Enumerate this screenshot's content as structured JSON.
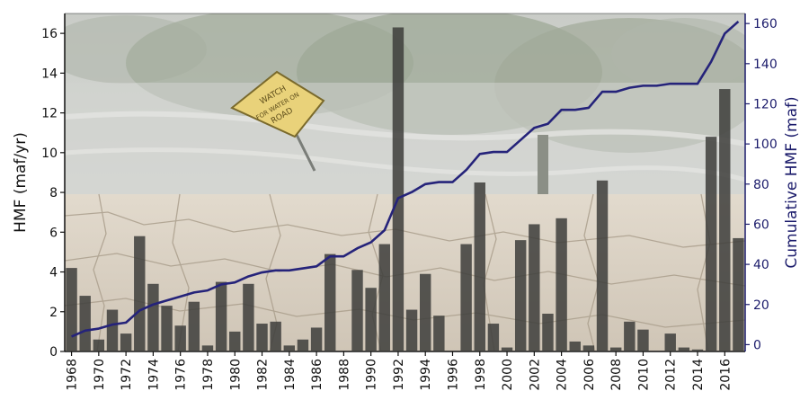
{
  "chart_data": {
    "type": "bar",
    "x": [
      1968,
      1969,
      1970,
      1971,
      1972,
      1973,
      1974,
      1975,
      1976,
      1977,
      1978,
      1979,
      1980,
      1981,
      1982,
      1983,
      1984,
      1985,
      1986,
      1987,
      1988,
      1989,
      1990,
      1991,
      1992,
      1993,
      1994,
      1995,
      1996,
      1997,
      1998,
      1999,
      2000,
      2001,
      2002,
      2003,
      2004,
      2005,
      2006,
      2007,
      2008,
      2009,
      2010,
      2011,
      2012,
      2013,
      2014,
      2015,
      2016,
      2017
    ],
    "series": [
      {
        "axis": "left",
        "kind": "bar",
        "values": [
          4.2,
          2.8,
          0.6,
          2.1,
          0.9,
          5.8,
          3.4,
          2.3,
          1.3,
          2.5,
          0.3,
          3.5,
          1.0,
          3.4,
          1.4,
          1.5,
          0.3,
          0.6,
          1.2,
          4.9,
          0,
          4.1,
          3.2,
          5.4,
          16.3,
          2.1,
          3.9,
          1.8,
          0,
          5.4,
          8.5,
          1.4,
          0.2,
          5.6,
          6.4,
          1.9,
          6.7,
          0.5,
          0.3,
          8.6,
          0.2,
          1.5,
          1.1,
          0,
          0.9,
          0.2,
          0.1,
          10.8,
          13.2,
          5.7
        ]
      },
      {
        "axis": "right",
        "kind": "line",
        "values": [
          4,
          7,
          8,
          10,
          11,
          17,
          20,
          22,
          24,
          26,
          27,
          30,
          31,
          34,
          36,
          37,
          37,
          38,
          39,
          44,
          44,
          48,
          51,
          57,
          73,
          76,
          80,
          81,
          81,
          87,
          95,
          96,
          96,
          102,
          108,
          110,
          117,
          117,
          118,
          126,
          126,
          128,
          129,
          129,
          130,
          130,
          130,
          141,
          155,
          161
        ]
      }
    ],
    "xticks": [
      "1968",
      "1970",
      "1972",
      "1974",
      "1976",
      "1978",
      "1980",
      "1982",
      "1984",
      "1986",
      "1988",
      "1990",
      "1992",
      "1994",
      "1996",
      "1998",
      "2000",
      "2002",
      "2004",
      "2006",
      "2008",
      "2010",
      "2012",
      "2014",
      "2016"
    ],
    "ylabel": "HMF (maf/yr)",
    "y2label": "Cumulative HMF (maf)",
    "ylim": [
      0,
      17
    ],
    "y2lim": [
      -3.4,
      165
    ],
    "yticks": [
      "0",
      "2",
      "4",
      "6",
      "8",
      "10",
      "12",
      "14",
      "16"
    ],
    "y2ticks": [
      "0",
      "20",
      "40",
      "60",
      "80",
      "100",
      "120",
      "140",
      "160"
    ],
    "colors": {
      "bar": "#3d3d3b",
      "line": "#25237a",
      "right_axis": "#1b1b6b",
      "flood_sky": "#cfd2cd",
      "flood_water": "#c9c9c4",
      "drought_soil": "#d9d0c3",
      "crack": "#a99d8c"
    },
    "grid": false,
    "legend": "none"
  },
  "background": {
    "sign_lines": [
      "WATCH",
      "FOR WATER ON",
      "ROAD"
    ]
  }
}
